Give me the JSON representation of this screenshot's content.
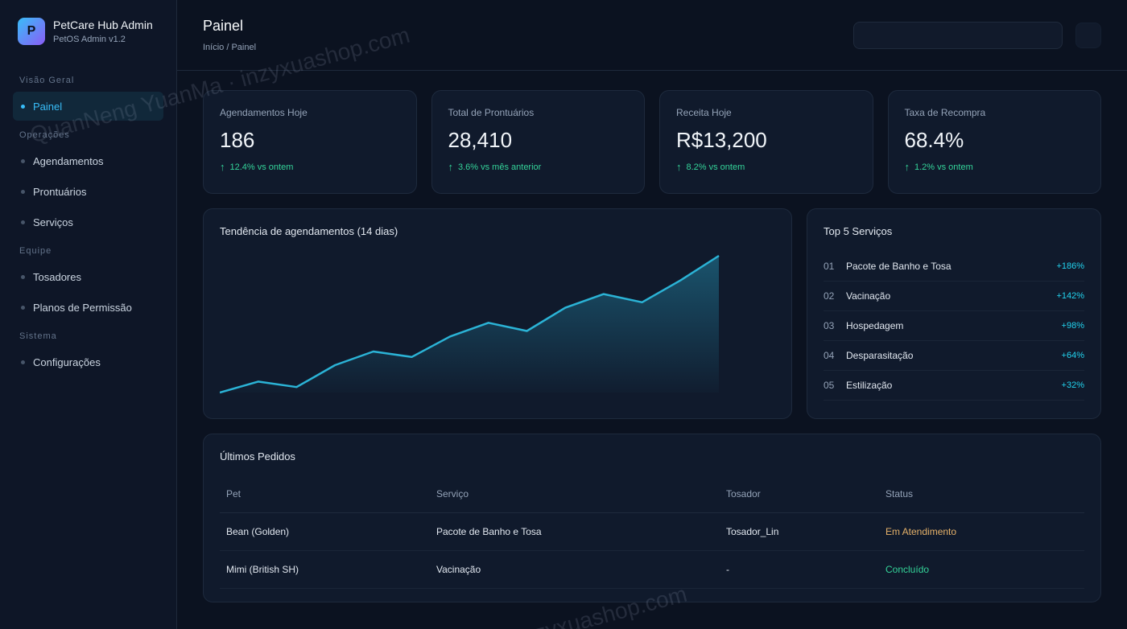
{
  "brand": {
    "logo": "P",
    "title": "PetCare Hub Admin",
    "subtitle": "PetOS Admin v1.2"
  },
  "sidebar": {
    "sections": [
      {
        "label": "Visão Geral",
        "items": [
          {
            "label": "Painel",
            "active": true
          }
        ]
      },
      {
        "label": "Operações",
        "items": [
          {
            "label": "Agendamentos"
          },
          {
            "label": "Prontuários"
          },
          {
            "label": "Serviços"
          }
        ]
      },
      {
        "label": "Equipe",
        "items": [
          {
            "label": "Tosadores"
          },
          {
            "label": "Planos de Permissão"
          }
        ]
      },
      {
        "label": "Sistema",
        "items": [
          {
            "label": "Configurações"
          }
        ]
      }
    ]
  },
  "header": {
    "title": "Painel",
    "breadcrumb": "Início / Painel",
    "search_value": ""
  },
  "stats": [
    {
      "label": "Agendamentos Hoje",
      "value": "186",
      "change": "12.4% vs ontem"
    },
    {
      "label": "Total de Prontuários",
      "value": "28,410",
      "change": "3.6% vs mês anterior"
    },
    {
      "label": "Receita Hoje",
      "value": "R$13,200",
      "change": "8.2% vs ontem"
    },
    {
      "label": "Taxa de Recompra",
      "value": "68.4%",
      "change": "1.2% vs ontem"
    }
  ],
  "trend": {
    "title": "Tendência de agendamentos (14 dias)"
  },
  "chart_data": {
    "type": "area",
    "title": "Tendência de agendamentos (14 dias)",
    "x": [
      1,
      2,
      3,
      4,
      5,
      6,
      7,
      8,
      9,
      10,
      11,
      12,
      13,
      14
    ],
    "values": [
      0,
      8,
      4,
      20,
      30,
      26,
      41,
      51,
      45,
      62,
      72,
      66,
      82,
      100
    ],
    "ylim": [
      0,
      100
    ],
    "grid": false,
    "colors": {
      "line": "#2bb3d6",
      "fill": "#1b5a74"
    }
  },
  "top_services": {
    "title": "Top 5 Serviços",
    "items": [
      {
        "rank": "01",
        "name": "Pacote de Banho e Tosa",
        "change": "+186%"
      },
      {
        "rank": "02",
        "name": "Vacinação",
        "change": "+142%"
      },
      {
        "rank": "03",
        "name": "Hospedagem",
        "change": "+98%"
      },
      {
        "rank": "04",
        "name": "Desparasitação",
        "change": "+64%"
      },
      {
        "rank": "05",
        "name": "Estilização",
        "change": "+32%"
      }
    ]
  },
  "orders": {
    "title": "Últimos Pedidos",
    "columns": [
      "Pet",
      "Serviço",
      "Tosador",
      "Status"
    ],
    "rows": [
      {
        "pet": "Bean (Golden)",
        "service": "Pacote de Banho e Tosa",
        "groomer": "Tosador_Lin",
        "status": "Em Atendimento"
      },
      {
        "pet": "Mimi (British SH)",
        "service": "Vacinação",
        "groomer": "-",
        "status": "Concluído"
      }
    ]
  },
  "watermarks": [
    "QuanNeng YuanMa · inzyxuashop.com",
    "inzyxuashop.com"
  ]
}
